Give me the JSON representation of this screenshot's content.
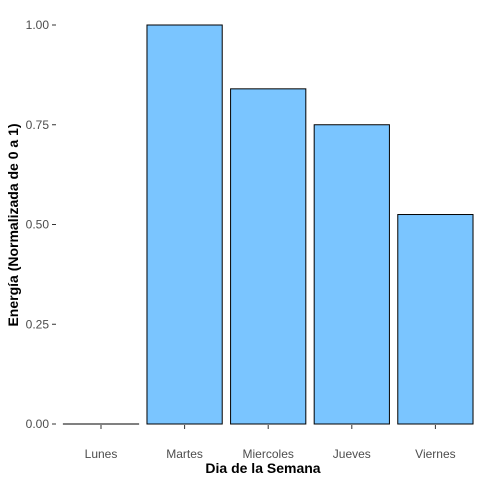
{
  "chart_data": {
    "type": "bar",
    "categories": [
      "Lunes",
      "Martes",
      "Miercoles",
      "Jueves",
      "Viernes"
    ],
    "values": [
      0.0,
      1.0,
      0.84,
      0.75,
      0.525
    ],
    "title": "",
    "xlabel": "Dia de la Semana",
    "ylabel": "Energía (Normalizada de 0 a 1)",
    "ylim": [
      0,
      1
    ],
    "yticks": [
      0,
      0.25,
      0.5,
      0.75,
      1
    ],
    "ytick_labels": [
      "0.00",
      "0.25",
      "0.50",
      "0.75",
      "1.00"
    ],
    "grid": false,
    "legend": "none",
    "bar_color": "#7AC5FF",
    "bar_edge_color": "#000000"
  }
}
